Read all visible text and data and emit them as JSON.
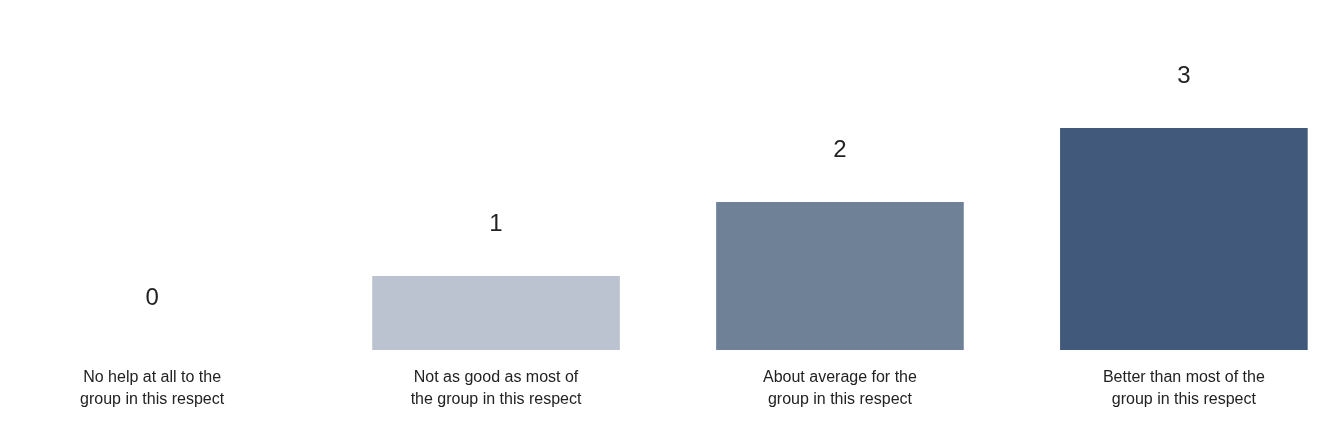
{
  "chart_data": {
    "type": "bar",
    "categories": [
      "No help at all to the group in this respect",
      "Not as good as most of the group in this respect",
      "About average for the group in this respect",
      "Better than most of the group in this respect"
    ],
    "values": [
      0,
      1,
      2,
      3
    ],
    "colors": [
      "#bac3cf",
      "#bac3cf",
      "#6f8196",
      "#41597a"
    ],
    "data_labels": true
  }
}
